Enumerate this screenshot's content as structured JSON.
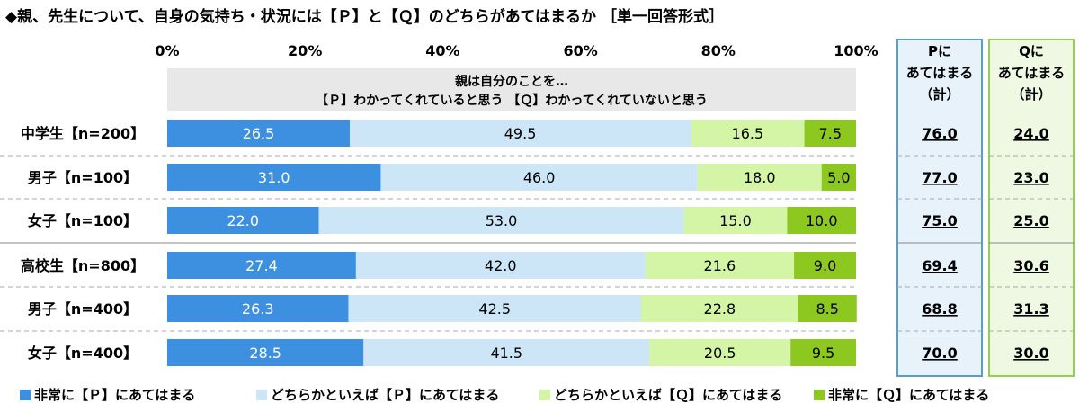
{
  "title": "◆親、先生について、自身の気持ち・状況には【Ｐ】と【Ｑ】のどちらがあてはまるか ［単一回答形式］",
  "chart_data": {
    "type": "bar",
    "orientation": "horizontal",
    "stacked": true,
    "x_ticks": [
      "0%",
      "20%",
      "40%",
      "60%",
      "80%",
      "100%"
    ],
    "xlim": [
      0,
      100
    ],
    "header_lines": [
      "親は自分のことを…",
      "【Ｐ】わかってくれていると思う 【Ｑ】わかってくれていないと思う"
    ],
    "categories": [
      "中学生【n=200】",
      "男子【n=100】",
      "女子【n=100】",
      "高校生【n=800】",
      "男子【n=400】",
      "女子【n=400】"
    ],
    "series": [
      {
        "name": "非常に【Ｐ】にあてはまる",
        "color": "#3d8fe0",
        "values": [
          26.5,
          31.0,
          22.0,
          27.4,
          26.3,
          28.5
        ]
      },
      {
        "name": "どちらかといえば【Ｐ】にあてはまる",
        "color": "#cce6f8",
        "values": [
          49.5,
          46.0,
          53.0,
          42.0,
          42.5,
          41.5
        ]
      },
      {
        "name": "どちらかといえば【Ｑ】にあてはまる",
        "color": "#d4f5a6",
        "values": [
          16.5,
          18.0,
          15.0,
          21.6,
          22.8,
          20.5
        ]
      },
      {
        "name": "非常に【Ｑ】にあてはまる",
        "color": "#8cc820",
        "values": [
          7.5,
          5.0,
          10.0,
          9.0,
          8.5,
          9.5
        ]
      }
    ],
    "summary_columns": [
      {
        "header": [
          "Pに",
          "あてはまる",
          "（計）"
        ],
        "border": "#5b9bd5",
        "fill": "#e8f2fb",
        "values": [
          "76.0",
          "77.0",
          "75.0",
          "69.4",
          "68.8",
          "70.0"
        ]
      },
      {
        "header": [
          "Qに",
          "あてはまる",
          "（計）"
        ],
        "border": "#92d050",
        "fill": "#eef8e2",
        "values": [
          "24.0",
          "23.0",
          "25.0",
          "30.6",
          "31.3",
          "30.0"
        ]
      }
    ],
    "legend_position": "bottom",
    "grid": false
  }
}
